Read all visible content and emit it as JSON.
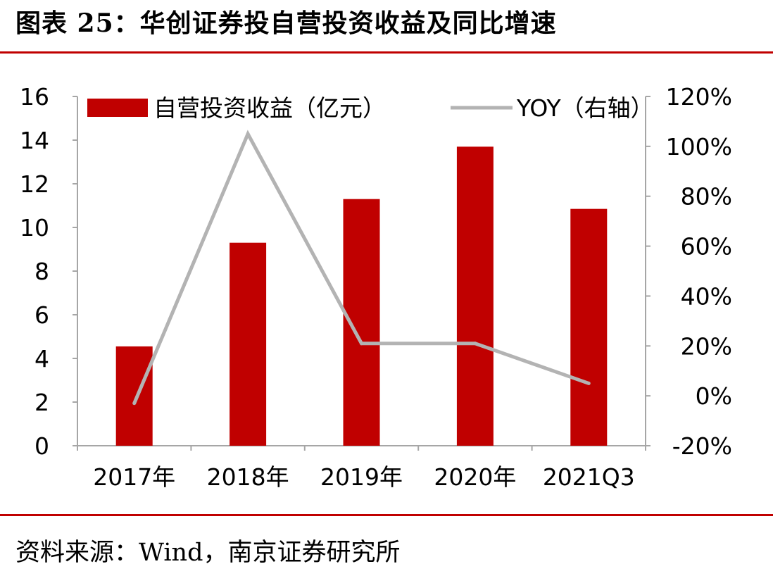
{
  "figure": {
    "title": "图表 25：华创证券投自营投资收益及同比增速",
    "source": "资料来源：Wind，南京证券研究所"
  },
  "colors": {
    "rule": "#c00000",
    "bar": "#c00000",
    "line": "#b3b3b3",
    "axis": "#a6a6a6"
  },
  "chart_data": {
    "type": "bar",
    "categories": [
      "2017年",
      "2018年",
      "2019年",
      "2020年",
      "2021Q3"
    ],
    "series": [
      {
        "name": "自营投资收益（亿元）",
        "kind": "bar",
        "axis": "left",
        "values": [
          4.55,
          9.3,
          11.3,
          13.7,
          10.85
        ]
      },
      {
        "name": "YOY（右轴）",
        "kind": "line",
        "axis": "right",
        "values": [
          -3,
          105,
          21,
          21,
          5
        ]
      }
    ],
    "y_left": {
      "ylim": [
        0,
        16
      ],
      "ticks": [
        "0",
        "2",
        "4",
        "6",
        "8",
        "10",
        "12",
        "14",
        "16"
      ]
    },
    "y_right": {
      "ylim": [
        -20,
        120
      ],
      "ticks": [
        "-20%",
        "0%",
        "20%",
        "40%",
        "60%",
        "80%",
        "100%",
        "120%"
      ]
    },
    "grid": false,
    "legend": "top"
  }
}
